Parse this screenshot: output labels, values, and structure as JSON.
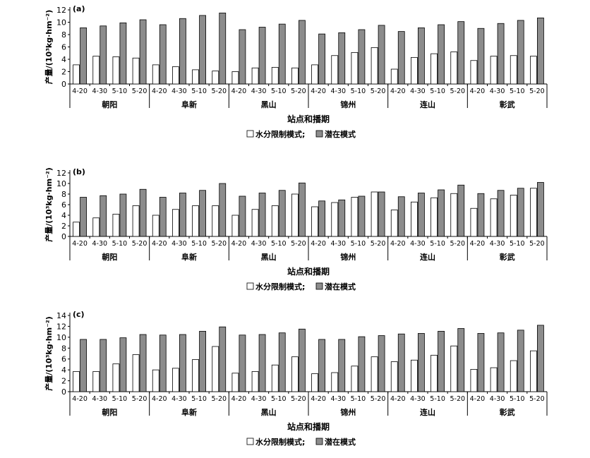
{
  "figure": {
    "xlabel": "站点和播期",
    "ylabel": "产量/(10³kg·hm⁻²)",
    "legend": [
      "水分限制模式;",
      "潜在模式"
    ],
    "colors": {
      "water_limited": "#ffffff",
      "potential": "#8c8c8c"
    }
  },
  "chart_data": [
    {
      "type": "bar",
      "panel_label": "(a)",
      "stations": [
        "朝阳",
        "阜新",
        "黑山",
        "锦州",
        "连山",
        "彰武"
      ],
      "sowing_dates": [
        "4-20",
        "4-30",
        "5-10",
        "5-20"
      ],
      "ylim": [
        0,
        12
      ],
      "yticks": [
        0,
        2,
        4,
        6,
        8,
        10,
        12
      ],
      "series": [
        {
          "name": "水分限制模式",
          "values": [
            3.1,
            4.5,
            4.4,
            4.2,
            3.1,
            2.8,
            2.3,
            2.1,
            2.0,
            2.6,
            2.7,
            2.6,
            3.1,
            4.6,
            5.1,
            5.9,
            2.4,
            4.3,
            4.9,
            5.2,
            3.8,
            4.5,
            4.6,
            4.5
          ]
        },
        {
          "name": "潜在模式",
          "values": [
            9.1,
            9.4,
            9.9,
            10.4,
            9.6,
            10.6,
            11.1,
            11.5,
            8.8,
            9.2,
            9.7,
            10.3,
            8.1,
            8.3,
            8.8,
            9.5,
            8.5,
            9.1,
            9.6,
            10.1,
            9.0,
            9.8,
            10.3,
            10.7
          ]
        }
      ]
    },
    {
      "type": "bar",
      "panel_label": "(b)",
      "stations": [
        "朝阳",
        "阜新",
        "黑山",
        "锦州",
        "连山",
        "彰武"
      ],
      "sowing_dates": [
        "4-20",
        "4-30",
        "5-10",
        "5-20"
      ],
      "ylim": [
        0,
        12
      ],
      "yticks": [
        0,
        2,
        4,
        6,
        8,
        10,
        12
      ],
      "series": [
        {
          "name": "水分限制模式",
          "values": [
            2.7,
            3.5,
            4.2,
            5.8,
            4.0,
            5.1,
            5.8,
            5.8,
            4.0,
            5.1,
            5.8,
            8.0,
            5.6,
            6.4,
            7.4,
            8.4,
            5.0,
            6.5,
            7.3,
            8.1,
            5.3,
            7.1,
            7.8,
            9.1
          ]
        },
        {
          "name": "潜在模式",
          "values": [
            7.4,
            7.7,
            8.0,
            8.9,
            7.4,
            8.2,
            8.7,
            10.0,
            7.6,
            8.2,
            8.7,
            10.1,
            6.7,
            6.9,
            7.6,
            8.4,
            7.5,
            8.2,
            8.8,
            9.7,
            8.1,
            8.7,
            9.1,
            10.2
          ]
        }
      ]
    },
    {
      "type": "bar",
      "panel_label": "(c)",
      "stations": [
        "朝阳",
        "阜新",
        "黑山",
        "锦州",
        "连山",
        "彰武"
      ],
      "sowing_dates": [
        "4-20",
        "4-30",
        "5-10",
        "5-20"
      ],
      "ylim": [
        0,
        14
      ],
      "yticks": [
        0,
        2,
        4,
        6,
        8,
        10,
        12,
        14
      ],
      "series": [
        {
          "name": "水分限制模式",
          "values": [
            3.7,
            3.7,
            5.1,
            6.8,
            4.0,
            4.3,
            5.9,
            8.3,
            3.4,
            3.7,
            4.9,
            6.4,
            3.3,
            3.5,
            4.7,
            6.4,
            5.5,
            5.8,
            6.7,
            8.4,
            4.1,
            4.4,
            5.7,
            7.5
          ]
        },
        {
          "name": "潜在模式",
          "values": [
            9.6,
            9.6,
            9.9,
            10.5,
            10.4,
            10.5,
            11.1,
            11.9,
            10.4,
            10.5,
            10.8,
            11.5,
            9.6,
            9.6,
            10.1,
            10.3,
            10.6,
            10.7,
            11.1,
            11.6,
            10.7,
            10.8,
            11.3,
            12.2
          ]
        }
      ]
    }
  ]
}
